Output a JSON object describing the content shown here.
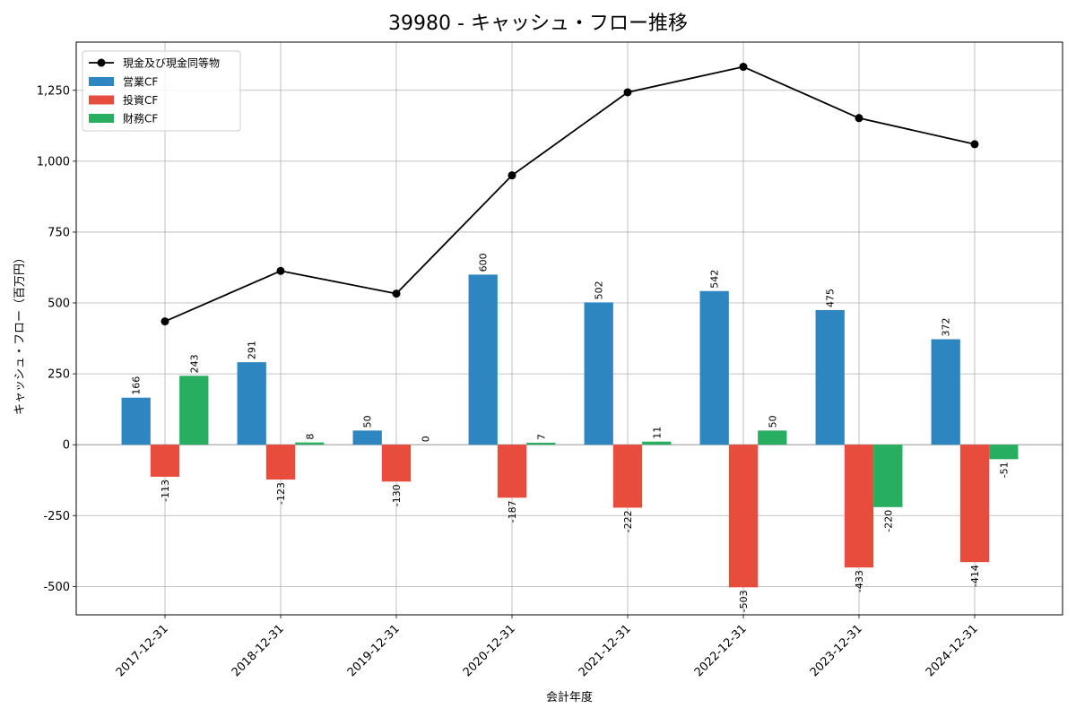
{
  "chart_data": {
    "type": "bar",
    "title": "39980 - キャッシュ・フロー推移",
    "xlabel": "会計年度",
    "ylabel": "キャッシュ・フロー（百万円）",
    "categories": [
      "2017-12-31",
      "2018-12-31",
      "2019-12-31",
      "2020-12-31",
      "2021-12-31",
      "2022-12-31",
      "2023-12-31",
      "2024-12-31"
    ],
    "series": [
      {
        "name": "営業CF",
        "color": "#2e86c1",
        "values": [
          166,
          291,
          50,
          600,
          502,
          542,
          475,
          372
        ]
      },
      {
        "name": "投資CF",
        "color": "#e74c3c",
        "values": [
          -113,
          -123,
          -130,
          -187,
          -222,
          -503,
          -433,
          -414
        ]
      },
      {
        "name": "財務CF",
        "color": "#27ae60",
        "values": [
          243,
          8,
          0,
          7,
          11,
          50,
          -220,
          -51
        ]
      }
    ],
    "line": {
      "name": "現金及び現金同等物",
      "color": "#000000",
      "values": [
        435,
        613,
        533,
        950,
        1243,
        1333,
        1152,
        1060
      ]
    },
    "yticks": [
      -500,
      -250,
      0,
      250,
      500,
      750,
      1000,
      1250
    ],
    "ytick_labels": [
      "-500",
      "-250",
      "0",
      "250",
      "500",
      "750",
      "1,000",
      "1,250"
    ],
    "ylim": [
      -600,
      1420
    ],
    "grid": true,
    "legend_position": "top-left"
  }
}
